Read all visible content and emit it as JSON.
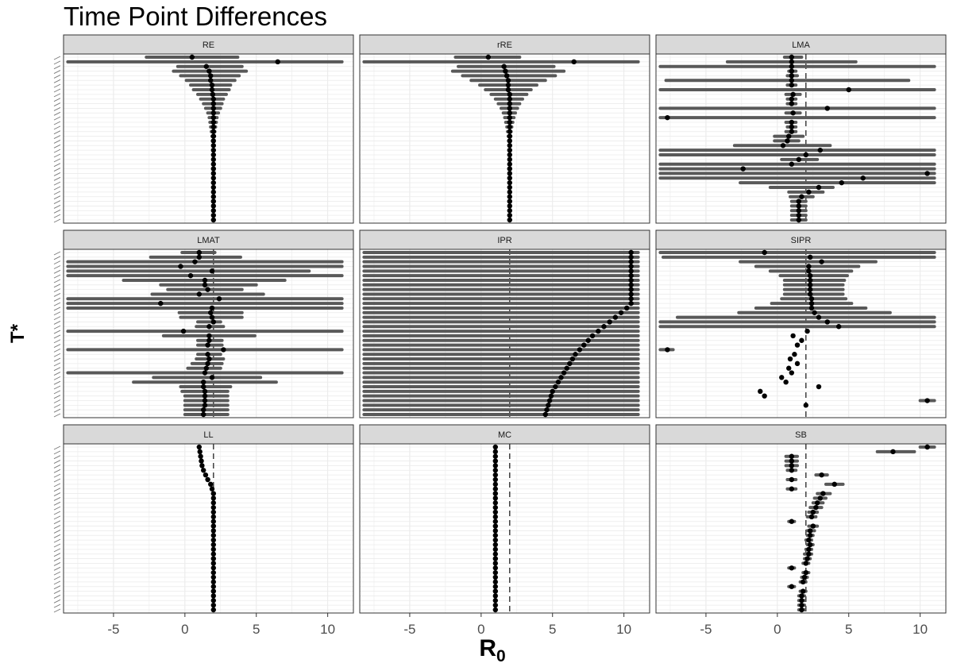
{
  "chart_data": {
    "type": "scatter",
    "title": "Time Point Differences",
    "xlabel": "R",
    "xlabel_subscript": "0",
    "ylabel": "T*",
    "xlim": [
      -8.5,
      11.8
    ],
    "x_ticks": [
      -5,
      0,
      5,
      10
    ],
    "x_tick_labels": [
      "-5",
      "0",
      "5",
      "10"
    ],
    "grid": true,
    "reference_line": 2,
    "colors": {
      "point": "#000000",
      "interval": "#595959",
      "strip": "#d9d9d9",
      "reference": "#333333",
      "grid": "#ebebeb"
    },
    "panels": [
      {
        "name": "RE",
        "ref": false,
        "n": 36,
        "est": [
          0.5,
          6.5,
          1.5,
          1.7,
          1.8,
          1.8,
          1.9,
          1.9,
          1.95,
          2,
          2,
          2,
          2,
          2,
          2,
          2,
          2,
          2,
          2,
          2,
          2,
          2,
          2,
          2,
          2,
          2,
          2,
          2,
          2,
          2,
          2,
          2,
          2,
          2,
          2,
          2
        ],
        "lo": [
          -2.7,
          -8.2,
          -0.5,
          -0.8,
          -0.3,
          0.1,
          0.4,
          0.6,
          0.9,
          1.1,
          1.3,
          1.45,
          1.6,
          1.7,
          1.75,
          1.8,
          1.85,
          1.9,
          1.92,
          1.95,
          2,
          2,
          2,
          2,
          2,
          2,
          2,
          2,
          2,
          2,
          2,
          2,
          2,
          2,
          2,
          2
        ],
        "hi": [
          3.7,
          11,
          4,
          4.3,
          3.8,
          3.5,
          3.2,
          3.1,
          2.9,
          2.7,
          2.6,
          2.5,
          2.35,
          2.25,
          2.2,
          2.15,
          2.1,
          2.08,
          2.05,
          2.03,
          2,
          2,
          2,
          2,
          2,
          2,
          2,
          2,
          2,
          2,
          2,
          2,
          2,
          2,
          2,
          2
        ]
      },
      {
        "name": "rRE",
        "ref": false,
        "n": 36,
        "est": [
          0.5,
          6.5,
          1.6,
          1.7,
          1.8,
          1.9,
          1.9,
          1.9,
          2,
          2,
          2,
          2,
          2,
          2,
          2,
          2,
          2,
          2,
          2,
          2,
          2,
          2,
          2,
          2,
          2,
          2,
          2,
          2,
          2,
          2,
          2,
          2,
          2,
          2,
          2,
          2
        ],
        "lo": [
          -1.8,
          -8.2,
          -1.6,
          -2,
          -1.3,
          -0.7,
          -0.1,
          0.3,
          0.7,
          1,
          1.2,
          1.4,
          1.55,
          1.65,
          1.72,
          1.8,
          1.85,
          1.9,
          1.92,
          1.95,
          2,
          2,
          2,
          2,
          2,
          2,
          2,
          2,
          2,
          2,
          2,
          2,
          2,
          2,
          2,
          2
        ],
        "hi": [
          2.7,
          11,
          5.1,
          5.8,
          5.2,
          4.5,
          3.9,
          3.5,
          3.2,
          2.9,
          2.7,
          2.55,
          2.4,
          2.3,
          2.22,
          2.15,
          2.1,
          2.08,
          2.05,
          2.03,
          2,
          2,
          2,
          2,
          2,
          2,
          2,
          2,
          2,
          2,
          2,
          2,
          2,
          2,
          2,
          2
        ],
        "ref_line": false
      },
      {
        "name": "LMA",
        "ref": true,
        "n": 36,
        "est": [
          1,
          1,
          1,
          1,
          1,
          1,
          1,
          5,
          1.1,
          1,
          1,
          3.5,
          1.1,
          -7.7,
          1,
          1,
          1,
          0.8,
          0.7,
          0.4,
          3,
          2,
          1.5,
          1,
          -2.4,
          10.5,
          6,
          4.5,
          2.9,
          2.2,
          1.7,
          1.5,
          1.5,
          1.5,
          1.5,
          1.5
        ],
        "lo": [
          0.5,
          -3.5,
          -8.2,
          0.8,
          0.7,
          -7.8,
          0.7,
          -8.2,
          0.6,
          0.7,
          0.7,
          -8.2,
          0.6,
          -8.2,
          0.6,
          0.7,
          0.6,
          -0.2,
          -0.2,
          -3,
          -8.2,
          -8.2,
          0.3,
          -8.2,
          -8.2,
          -8.2,
          -8.2,
          -2.6,
          -0.5,
          0.8,
          0.9,
          1,
          1,
          1,
          1,
          1
        ],
        "hi": [
          1.7,
          5.5,
          11,
          1.3,
          1.4,
          9.2,
          1.3,
          11,
          1.6,
          1.3,
          1.3,
          11,
          1.6,
          11,
          1.3,
          1.3,
          1.3,
          1.8,
          1.5,
          3.7,
          11,
          11,
          2.8,
          11,
          11,
          11,
          11,
          11,
          3.9,
          3.2,
          2.5,
          2,
          2,
          2,
          2,
          2
        ],
        "n_shown": 36
      },
      {
        "name": "LMAT",
        "ref": true,
        "n": 36,
        "est": [
          1,
          1,
          0.7,
          -0.3,
          1.9,
          0.4,
          1.4,
          1.4,
          1.6,
          1,
          2.4,
          -1.7,
          1.9,
          1.8,
          1.9,
          2,
          1.7,
          -0.1,
          1.7,
          1.7,
          1.6,
          2.7,
          1.6,
          1.7,
          1.6,
          1.5,
          1.4,
          1.9,
          1.3,
          1.3,
          1.4,
          1.4,
          1.4,
          1.4,
          1.3,
          1.3
        ],
        "lo": [
          -0.2,
          -2.4,
          -8.2,
          -8.2,
          -8.2,
          -8.2,
          -4.3,
          -1.7,
          -1.2,
          -2.3,
          -8.2,
          -8.2,
          -8.2,
          -0.4,
          -0.3,
          0.9,
          0.8,
          -8.2,
          -1.5,
          0.9,
          0.9,
          -8.2,
          0.9,
          0.8,
          0.5,
          0.2,
          -8.2,
          -2.2,
          -3.6,
          -0.3,
          -0.2,
          0,
          0,
          0,
          0,
          0
        ],
        "hi": [
          2.1,
          3.9,
          11,
          11,
          8.7,
          11,
          7,
          5,
          4,
          5.5,
          11,
          11,
          11,
          4,
          4,
          2.5,
          2.7,
          11,
          4.9,
          2.6,
          2.6,
          11,
          2.5,
          2.7,
          2.6,
          2.5,
          11,
          5.3,
          6.4,
          3.2,
          3,
          3,
          3,
          3,
          3,
          3
        ]
      },
      {
        "name": "IPR",
        "ref": true,
        "n": 36,
        "est": [
          10.5,
          10.5,
          10.5,
          10.5,
          10.5,
          10.5,
          10.5,
          10.5,
          10.5,
          10.5,
          10.5,
          10.5,
          10.2,
          9.8,
          9.4,
          9,
          8.6,
          8.2,
          7.8,
          7.5,
          7.2,
          6.9,
          6.6,
          6.4,
          6.2,
          6,
          5.8,
          5.6,
          5.4,
          5.2,
          5,
          4.9,
          4.8,
          4.7,
          4.6,
          4.5
        ],
        "lo": [
          -8.2,
          -8.2,
          -8.2,
          -8.2,
          -8.2,
          -8.2,
          -8.2,
          -8.2,
          -8.2,
          -8.2,
          -8.2,
          -8.2,
          -8.2,
          -8.2,
          -8.2,
          -8.2,
          -8.2,
          -8.2,
          -8.2,
          -8.2,
          -8.2,
          -8.2,
          -8.2,
          -8.2,
          -8.2,
          -8.2,
          -8.2,
          -8.2,
          -8.2,
          -8.2,
          -8.2,
          -8.2,
          -8.2,
          -8.2,
          -8.2,
          -8.2
        ],
        "hi": [
          11,
          11,
          11,
          11,
          11,
          11,
          11,
          11,
          11,
          11,
          11,
          11,
          11,
          11,
          11,
          11,
          11,
          11,
          11,
          11,
          11,
          11,
          11,
          11,
          11,
          11,
          11,
          11,
          11,
          11,
          11,
          11,
          11,
          11,
          11,
          11
        ]
      },
      {
        "name": "SIPR",
        "ref": true,
        "n": 36,
        "est": [
          -0.9,
          2.3,
          3.1,
          2.2,
          2.2,
          2.3,
          2.3,
          2.3,
          2.3,
          2.3,
          2.4,
          2.4,
          2.4,
          2.6,
          2.9,
          3.5,
          4.3,
          2.1,
          1.1,
          1.7,
          1.4,
          -7.7,
          1.2,
          0.9,
          1.4,
          0.8,
          1,
          0.3,
          0.6,
          2.9,
          -1.2,
          -0.9,
          10.5,
          2,
          2,
          2
        ],
        "lo": [
          -8.2,
          -8,
          -2.6,
          -1.5,
          -0.5,
          0.2,
          0.5,
          0.5,
          0.5,
          0.5,
          0.3,
          -0.4,
          -1.5,
          -2.7,
          -7,
          -8.2,
          -8.2,
          2.1,
          1.1,
          1.7,
          1.4,
          -8.2,
          1.2,
          0.9,
          1.4,
          0.8,
          1,
          0.3,
          0.6,
          2.9,
          -1.2,
          -0.9,
          10,
          2,
          2,
          2
        ],
        "hi": [
          11,
          11,
          6.9,
          5.7,
          5.2,
          4.9,
          4.7,
          4.6,
          4.6,
          4.6,
          4.8,
          5.2,
          6.2,
          7.9,
          11,
          11,
          11,
          2.1,
          1.1,
          1.7,
          1.4,
          -7.3,
          1.2,
          0.9,
          1.4,
          0.8,
          1,
          0.3,
          0.6,
          2.9,
          -1.2,
          -0.9,
          11,
          2,
          2,
          2
        ],
        "n_shown": 34
      },
      {
        "name": "LL",
        "ref": true,
        "n": 36,
        "est": [
          1,
          1.05,
          1.1,
          1.15,
          1.2,
          1.3,
          1.45,
          1.6,
          1.8,
          1.9,
          2,
          2,
          2,
          2,
          2,
          2,
          2,
          2,
          2,
          2,
          2,
          2,
          2,
          2,
          2,
          2,
          2,
          2,
          2,
          2,
          2,
          2,
          2,
          2,
          2,
          2
        ]
      },
      {
        "name": "MC",
        "ref": true,
        "n": 36,
        "est": [
          1,
          1,
          1,
          1,
          1,
          1,
          1,
          1,
          1,
          1,
          1,
          1,
          1,
          1,
          1,
          1,
          1,
          1,
          1,
          1,
          1,
          1,
          1,
          1,
          1,
          1,
          1,
          1,
          1,
          1,
          1,
          1,
          1,
          1,
          1,
          1
        ]
      },
      {
        "name": "SB",
        "ref": true,
        "n": 36,
        "est": [
          10.5,
          8.1,
          1,
          1,
          1,
          1,
          3.1,
          1,
          4,
          1,
          3.2,
          3,
          2.8,
          2.7,
          2.5,
          2.4,
          1,
          2.5,
          2.3,
          2.3,
          2.2,
          2.3,
          2.2,
          2.2,
          2.1,
          2,
          1,
          2,
          1.9,
          1.8,
          1,
          1.8,
          1.7,
          1.7,
          1.7,
          1.7
        ],
        "lo": [
          10,
          7,
          0.6,
          0.6,
          0.6,
          0.7,
          2.7,
          0.7,
          3.4,
          0.7,
          2.8,
          2.6,
          2.5,
          2.3,
          2.2,
          2.1,
          0.8,
          2.2,
          2.1,
          2.1,
          2,
          2.1,
          2,
          1.9,
          1.9,
          1.8,
          0.8,
          1.8,
          1.7,
          1.6,
          0.8,
          1.6,
          1.5,
          1.5,
          1.5,
          1.5
        ],
        "hi": [
          11,
          9.6,
          1.4,
          1.4,
          1.4,
          1.3,
          3.5,
          1.3,
          4.6,
          1.3,
          3.7,
          3.4,
          3.2,
          3.1,
          2.8,
          2.7,
          1.2,
          2.8,
          2.6,
          2.5,
          2.4,
          2.5,
          2.4,
          2.4,
          2.3,
          2.2,
          1.2,
          2.2,
          2.1,
          2,
          1.2,
          2,
          1.9,
          1.9,
          1.9,
          1.9
        ]
      }
    ]
  }
}
